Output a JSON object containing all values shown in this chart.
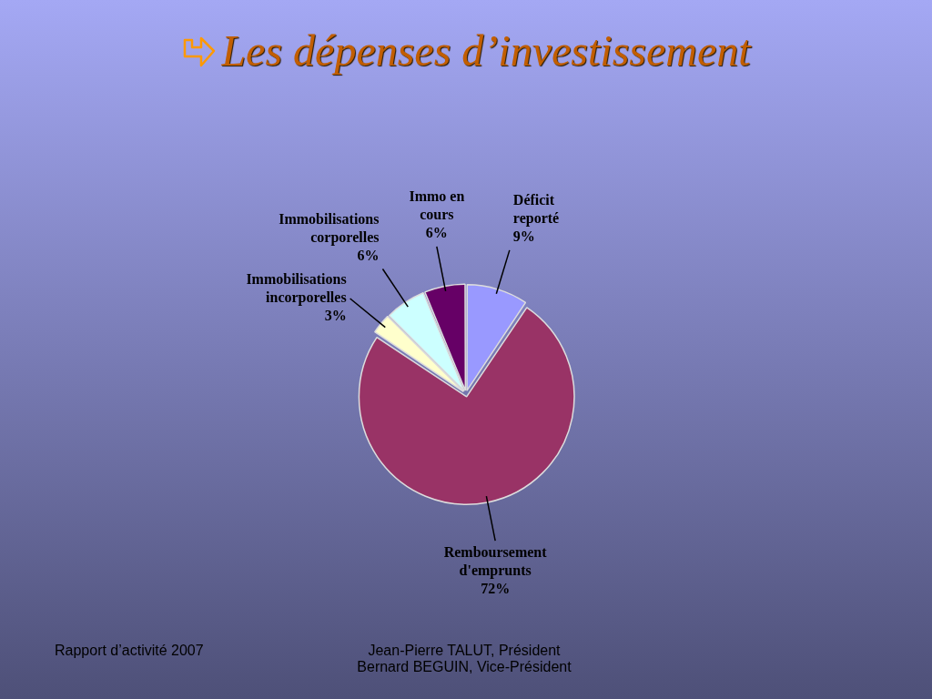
{
  "chart_data": {
    "type": "pie",
    "title": "Les dépenses d’investissement",
    "categories": [
      "Déficit reporté",
      "Remboursement d'emprunts",
      "Immobilisations incorporelles",
      "Immobilisations corporelles",
      "Immo en cours"
    ],
    "values": [
      9,
      72,
      3,
      6,
      6
    ],
    "colors": [
      "#9999ff",
      "#993366",
      "#ffffcc",
      "#ccffff",
      "#660066"
    ],
    "value_labels": [
      "9%",
      "72%",
      "3%",
      "6%",
      "6%"
    ],
    "legend": false,
    "annotations": [
      "Rapport d’activité 2007",
      "Jean-Pierre TALUT, Président\nBernard BEGUIN, Vice-Président"
    ]
  }
}
